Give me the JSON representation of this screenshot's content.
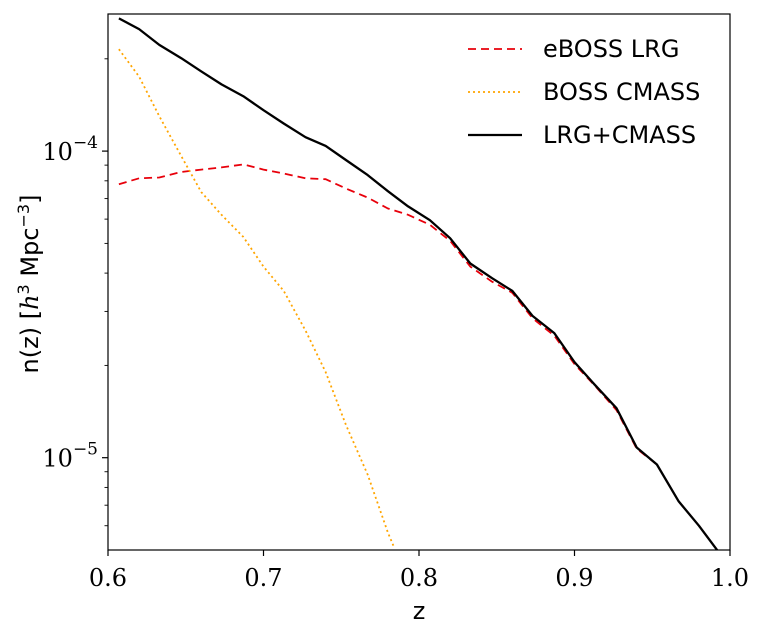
{
  "chart_data": {
    "type": "line",
    "title": "",
    "xlabel": "z",
    "ylabel_base": "n(z) [",
    "ylabel_h": "h",
    "ylabel_h_exp": "3",
    "ylabel_mpc": " Mpc",
    "ylabel_mpc_exp": "−3",
    "ylabel_close": "]",
    "xlim": [
      0.6,
      1.0
    ],
    "ylim": [
      5e-06,
      0.00028
    ],
    "yscale": "log",
    "grid": false,
    "legend_position": "top-right",
    "x_ticks": [
      {
        "value": 0.6,
        "label": "0.6"
      },
      {
        "value": 0.7,
        "label": "0.7"
      },
      {
        "value": 0.8,
        "label": "0.8"
      },
      {
        "value": 0.9,
        "label": "0.9"
      },
      {
        "value": 1.0,
        "label": "1.0"
      }
    ],
    "y_ticks": [
      {
        "value": 0.0001,
        "base": "10",
        "exp": "−4"
      },
      {
        "value": 1e-05,
        "base": "10",
        "exp": "−5"
      }
    ],
    "series": [
      {
        "name": "eBOSS LRG",
        "color": "#e8000b",
        "dash": "8,5",
        "x": [
          0.607,
          0.62,
          0.633,
          0.647,
          0.66,
          0.673,
          0.687,
          0.7,
          0.713,
          0.727,
          0.74,
          0.753,
          0.767,
          0.78,
          0.793,
          0.807,
          0.82,
          0.833,
          0.847,
          0.86,
          0.873,
          0.887,
          0.9,
          0.913,
          0.927,
          0.94,
          0.953,
          0.967,
          0.98,
          0.993
        ],
        "values": [
          7.8e-05,
          8.15e-05,
          8.2e-05,
          8.55e-05,
          8.7e-05,
          8.85e-05,
          9.05e-05,
          8.7e-05,
          8.45e-05,
          8.15e-05,
          8.1e-05,
          7.55e-05,
          7.05e-05,
          6.5e-05,
          6.2e-05,
          5.75e-05,
          5.1e-05,
          4.2e-05,
          3.75e-05,
          3.45e-05,
          2.85e-05,
          2.5e-05,
          2.02e-05,
          1.72e-05,
          1.43e-05,
          1.07e-05,
          9.5e-06,
          7.2e-06,
          6e-06,
          4.9e-06
        ]
      },
      {
        "name": "BOSS CMASS",
        "color": "#ffa500",
        "dash": "2,3",
        "x": [
          0.607,
          0.62,
          0.633,
          0.647,
          0.66,
          0.673,
          0.687,
          0.7,
          0.713,
          0.727,
          0.74,
          0.753,
          0.767,
          0.78,
          0.784
        ],
        "values": [
          0.000215,
          0.000175,
          0.00013,
          9.65e-05,
          7.35e-05,
          6.2e-05,
          5.25e-05,
          4.2e-05,
          3.5e-05,
          2.6e-05,
          1.9e-05,
          1.28e-05,
          8.8e-06,
          5.7e-06,
          5.1e-06
        ]
      },
      {
        "name": "LRG+CMASS",
        "color": "#000000",
        "dash": "",
        "x": [
          0.607,
          0.62,
          0.633,
          0.647,
          0.66,
          0.673,
          0.687,
          0.7,
          0.713,
          0.727,
          0.74,
          0.753,
          0.767,
          0.78,
          0.793,
          0.807,
          0.82,
          0.833,
          0.847,
          0.86,
          0.873,
          0.887,
          0.9,
          0.913,
          0.927,
          0.94,
          0.953,
          0.967,
          0.98,
          0.993
        ],
        "values": [
          0.000271,
          0.00025,
          0.000222,
          0.000201,
          0.000182,
          0.000165,
          0.000151,
          0.000136,
          0.000123,
          0.000111,
          0.000104,
          9.35e-05,
          8.35e-05,
          7.4e-05,
          6.6e-05,
          5.95e-05,
          5.2e-05,
          4.3e-05,
          3.85e-05,
          3.5e-05,
          2.9e-05,
          2.55e-05,
          2.05e-05,
          1.73e-05,
          1.45e-05,
          1.08e-05,
          9.5e-06,
          7.2e-06,
          6e-06,
          4.9e-06
        ]
      }
    ]
  }
}
